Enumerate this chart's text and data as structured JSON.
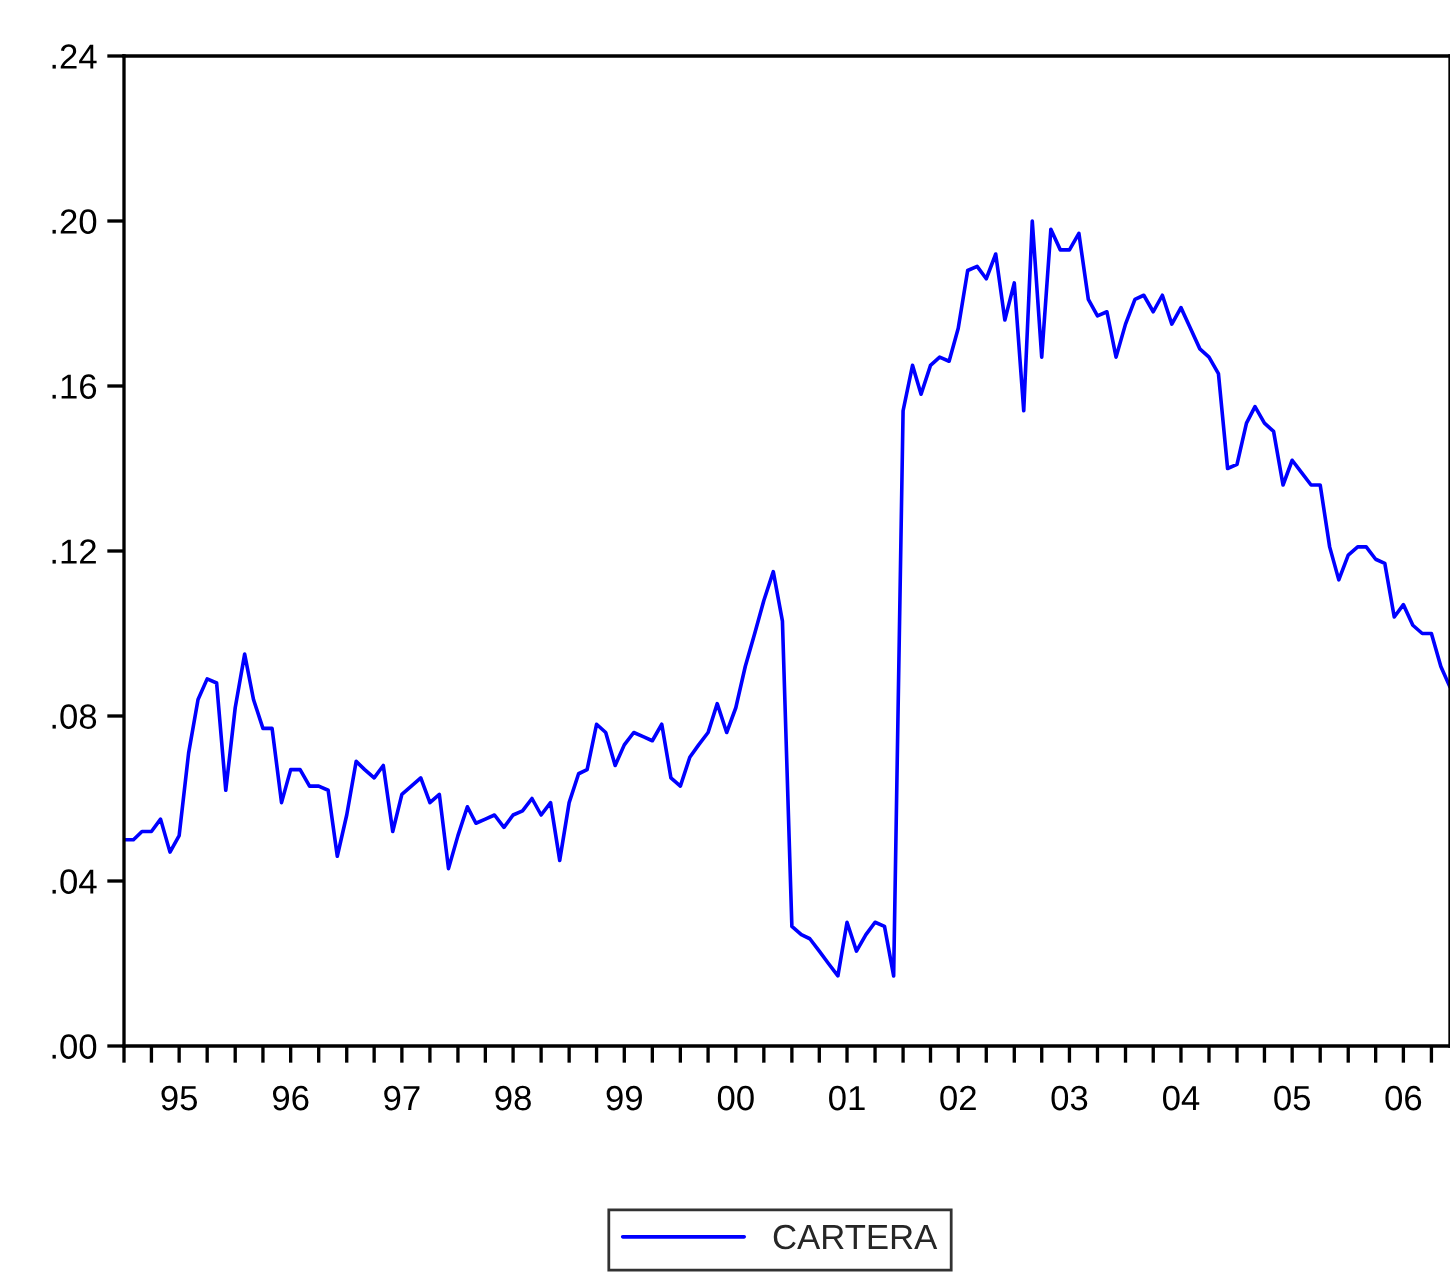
{
  "chart_data": {
    "type": "line",
    "x": [
      "1995-01",
      "1995-02",
      "1995-03",
      "1995-04",
      "1995-05",
      "1995-06",
      "1995-07",
      "1995-08",
      "1995-09",
      "1995-10",
      "1995-11",
      "1995-12",
      "1996-01",
      "1996-02",
      "1996-03",
      "1996-04",
      "1996-05",
      "1996-06",
      "1996-07",
      "1996-08",
      "1996-09",
      "1996-10",
      "1996-11",
      "1996-12",
      "1997-01",
      "1997-02",
      "1997-03",
      "1997-04",
      "1997-05",
      "1997-06",
      "1997-07",
      "1997-08",
      "1997-09",
      "1997-10",
      "1997-11",
      "1997-12",
      "1998-01",
      "1998-02",
      "1998-03",
      "1998-04",
      "1998-05",
      "1998-06",
      "1998-07",
      "1998-08",
      "1998-09",
      "1998-10",
      "1998-11",
      "1998-12",
      "1999-01",
      "1999-02",
      "1999-03",
      "1999-04",
      "1999-05",
      "1999-06",
      "1999-07",
      "1999-08",
      "1999-09",
      "1999-10",
      "1999-11",
      "1999-12",
      "2000-01",
      "2000-02",
      "2000-03",
      "2000-04",
      "2000-05",
      "2000-06",
      "2000-07",
      "2000-08",
      "2000-09",
      "2000-10",
      "2000-11",
      "2000-12",
      "2001-01",
      "2001-02",
      "2001-03",
      "2001-04",
      "2001-05",
      "2001-06",
      "2001-07",
      "2001-08",
      "2001-09",
      "2001-10",
      "2001-11",
      "2001-12",
      "2002-01",
      "2002-02",
      "2002-03",
      "2002-04",
      "2002-05",
      "2002-06",
      "2002-07",
      "2002-08",
      "2002-09",
      "2002-10",
      "2002-11",
      "2002-12",
      "2003-01",
      "2003-02",
      "2003-03",
      "2003-04",
      "2003-05",
      "2003-06",
      "2003-07",
      "2003-08",
      "2003-09",
      "2003-10",
      "2003-11",
      "2003-12",
      "2004-01",
      "2004-02",
      "2004-03",
      "2004-04",
      "2004-05",
      "2004-06",
      "2004-07",
      "2004-08",
      "2004-09",
      "2004-10",
      "2004-11",
      "2004-12",
      "2005-01",
      "2005-02",
      "2005-03",
      "2005-04",
      "2005-05",
      "2005-06",
      "2005-07",
      "2005-08",
      "2005-09",
      "2005-10",
      "2005-11",
      "2005-12",
      "2006-01",
      "2006-02",
      "2006-03",
      "2006-04",
      "2006-05",
      "2006-06",
      "2006-07",
      "2006-08",
      "2006-09",
      "2006-10",
      "2006-11",
      "2006-12"
    ],
    "series": [
      {
        "name": "CARTERA",
        "color": "#0000ff",
        "values": [
          0.05,
          0.05,
          0.052,
          0.052,
          0.055,
          0.047,
          0.051,
          0.071,
          0.084,
          0.089,
          0.088,
          0.062,
          0.082,
          0.095,
          0.084,
          0.077,
          0.077,
          0.059,
          0.067,
          0.067,
          0.063,
          0.063,
          0.062,
          0.046,
          0.056,
          0.069,
          0.067,
          0.065,
          0.068,
          0.052,
          0.061,
          0.063,
          0.065,
          0.059,
          0.061,
          0.043,
          0.051,
          0.058,
          0.054,
          0.055,
          0.056,
          0.053,
          0.056,
          0.057,
          0.06,
          0.056,
          0.059,
          0.045,
          0.059,
          0.066,
          0.067,
          0.078,
          0.076,
          0.068,
          0.073,
          0.076,
          0.075,
          0.074,
          0.078,
          0.065,
          0.063,
          0.07,
          0.073,
          0.076,
          0.083,
          0.076,
          0.082,
          0.092,
          0.1,
          0.108,
          0.115,
          0.103,
          0.029,
          0.027,
          0.026,
          0.023,
          0.02,
          0.017,
          0.03,
          0.023,
          0.027,
          0.03,
          0.029,
          0.017,
          0.154,
          0.165,
          0.158,
          0.165,
          0.167,
          0.166,
          0.174,
          0.188,
          0.189,
          0.186,
          0.192,
          0.176,
          0.185,
          0.154,
          0.2,
          0.167,
          0.198,
          0.193,
          0.193,
          0.197,
          0.181,
          0.177,
          0.178,
          0.167,
          0.175,
          0.181,
          0.182,
          0.178,
          0.182,
          0.175,
          0.179,
          0.174,
          0.169,
          0.167,
          0.163,
          0.14,
          0.141,
          0.151,
          0.155,
          0.151,
          0.149,
          0.136,
          0.142,
          0.139,
          0.136,
          0.136,
          0.121,
          0.113,
          0.119,
          0.121,
          0.121,
          0.118,
          0.117,
          0.104,
          0.107,
          0.102,
          0.1,
          0.1,
          0.092,
          0.087
        ]
      }
    ],
    "xlim": [
      "1995-01",
      "2006-12"
    ],
    "xticks": [
      {
        "value": "1995-01",
        "label": null
      },
      {
        "value": "1995-04",
        "label": null
      },
      {
        "value": "1995-07",
        "label": "95"
      },
      {
        "value": "1995-10",
        "label": null
      },
      {
        "value": "1996-01",
        "label": null
      },
      {
        "value": "1996-04",
        "label": null
      },
      {
        "value": "1996-07",
        "label": "96"
      },
      {
        "value": "1996-10",
        "label": null
      },
      {
        "value": "1997-01",
        "label": null
      },
      {
        "value": "1997-04",
        "label": null
      },
      {
        "value": "1997-07",
        "label": "97"
      },
      {
        "value": "1997-10",
        "label": null
      },
      {
        "value": "1998-01",
        "label": null
      },
      {
        "value": "1998-04",
        "label": null
      },
      {
        "value": "1998-07",
        "label": "98"
      },
      {
        "value": "1998-10",
        "label": null
      },
      {
        "value": "1999-01",
        "label": null
      },
      {
        "value": "1999-04",
        "label": null
      },
      {
        "value": "1999-07",
        "label": "99"
      },
      {
        "value": "1999-10",
        "label": null
      },
      {
        "value": "2000-01",
        "label": null
      },
      {
        "value": "2000-04",
        "label": null
      },
      {
        "value": "2000-07",
        "label": "00"
      },
      {
        "value": "2000-10",
        "label": null
      },
      {
        "value": "2001-01",
        "label": null
      },
      {
        "value": "2001-04",
        "label": null
      },
      {
        "value": "2001-07",
        "label": "01"
      },
      {
        "value": "2001-10",
        "label": null
      },
      {
        "value": "2002-01",
        "label": null
      },
      {
        "value": "2002-04",
        "label": null
      },
      {
        "value": "2002-07",
        "label": "02"
      },
      {
        "value": "2002-10",
        "label": null
      },
      {
        "value": "2003-01",
        "label": null
      },
      {
        "value": "2003-04",
        "label": null
      },
      {
        "value": "2003-07",
        "label": "03"
      },
      {
        "value": "2003-10",
        "label": null
      },
      {
        "value": "2004-01",
        "label": null
      },
      {
        "value": "2004-04",
        "label": null
      },
      {
        "value": "2004-07",
        "label": "04"
      },
      {
        "value": "2004-10",
        "label": null
      },
      {
        "value": "2005-01",
        "label": null
      },
      {
        "value": "2005-04",
        "label": null
      },
      {
        "value": "2005-07",
        "label": "05"
      },
      {
        "value": "2005-10",
        "label": null
      },
      {
        "value": "2006-01",
        "label": null
      },
      {
        "value": "2006-04",
        "label": null
      },
      {
        "value": "2006-07",
        "label": "06"
      },
      {
        "value": "2006-10",
        "label": null
      }
    ],
    "ylim": [
      0,
      0.24
    ],
    "yticks": [
      {
        "value": 0,
        "label": ".00"
      },
      {
        "value": 0.04,
        "label": ".04"
      },
      {
        "value": 0.08,
        "label": ".08"
      },
      {
        "value": 0.12,
        "label": ".12"
      },
      {
        "value": 0.16,
        "label": ".16"
      },
      {
        "value": 0.2,
        "label": ".20"
      },
      {
        "value": 0.24,
        "label": ".24"
      }
    ],
    "grid": false,
    "legend": "bottom",
    "line_style": "solid"
  }
}
